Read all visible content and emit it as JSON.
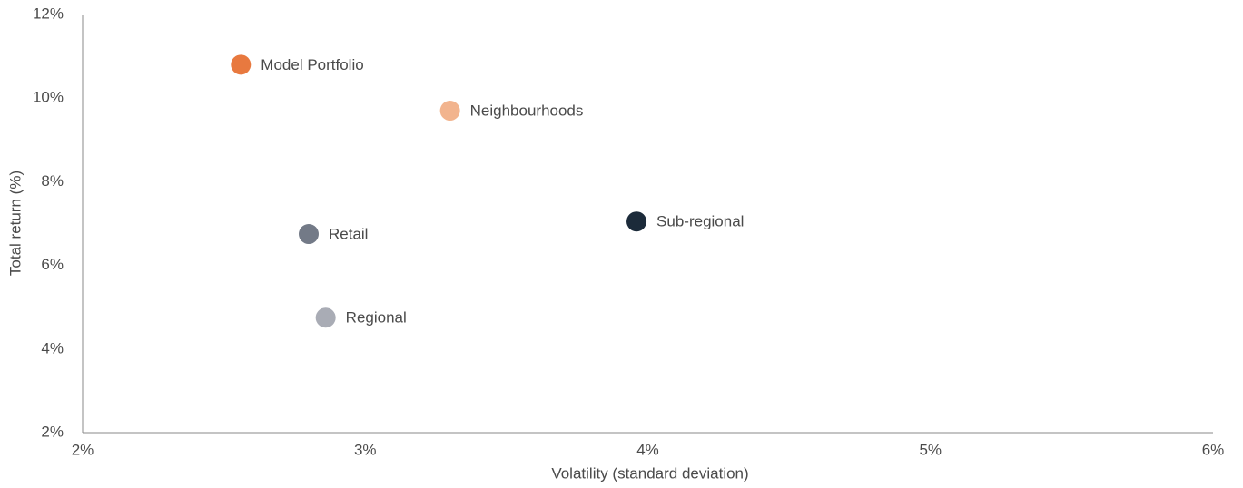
{
  "chart_data": {
    "type": "scatter",
    "xlabel": "Volatility (standard deviation)",
    "ylabel": "Total return (%)",
    "xlim": [
      2,
      6
    ],
    "xticks": [
      {
        "value": 2,
        "label": "2%"
      },
      {
        "value": 3,
        "label": "3%"
      },
      {
        "value": 4,
        "label": "4%"
      },
      {
        "value": 5,
        "label": "5%"
      },
      {
        "value": 6,
        "label": "6%"
      }
    ],
    "ylim": [
      2,
      12
    ],
    "yticks": [
      {
        "value": 2,
        "label": "2%"
      },
      {
        "value": 4,
        "label": "4%"
      },
      {
        "value": 6,
        "label": "6%"
      },
      {
        "value": 8,
        "label": "8%"
      },
      {
        "value": 10,
        "label": "10%"
      },
      {
        "value": 12,
        "label": "12%"
      }
    ],
    "points": [
      {
        "name": "Model Portfolio",
        "color": "#e8793f",
        "x": 2.56,
        "y": 10.8
      },
      {
        "name": "Neighbourhoods",
        "color": "#f2b48e",
        "x": 3.3,
        "y": 9.7
      },
      {
        "name": "Sub-regional",
        "color": "#1c2b3a",
        "x": 3.96,
        "y": 7.05
      },
      {
        "name": "Retail",
        "color": "#737a87",
        "x": 2.8,
        "y": 6.75
      },
      {
        "name": "Regional",
        "color": "#a9acb5",
        "x": 2.86,
        "y": 4.75
      }
    ]
  }
}
